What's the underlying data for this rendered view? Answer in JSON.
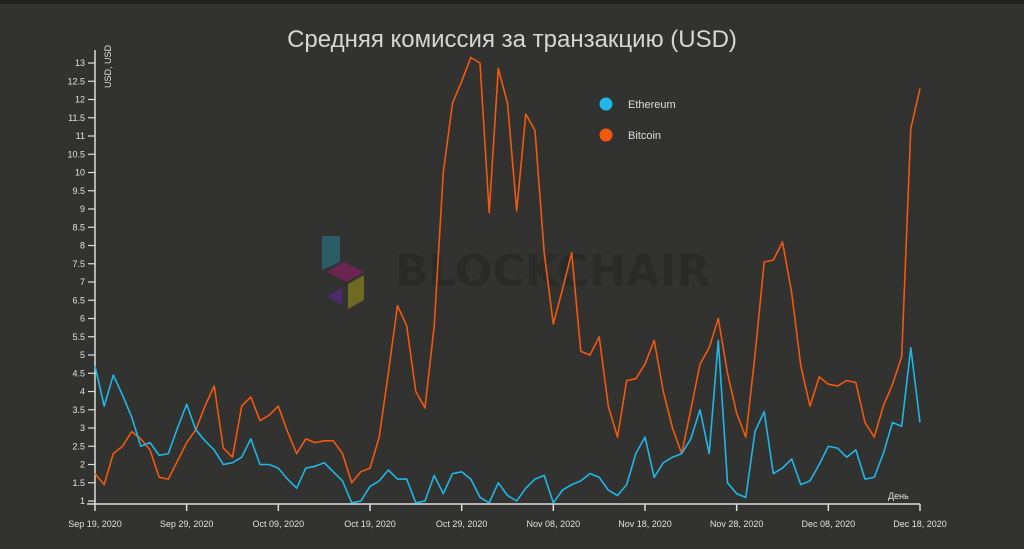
{
  "chart_data": {
    "type": "line",
    "title": "Средняя комиссия за транзакцию (USD)",
    "ylabel": "USD, USD",
    "xlabel": "День",
    "ylim": [
      1,
      13
    ],
    "yticks": [
      "1",
      "1.5",
      "2",
      "2.5",
      "3",
      "3.5",
      "4",
      "4.5",
      "5",
      "5.5",
      "6",
      "6.5",
      "7",
      "7.5",
      "8",
      "8.5",
      "9",
      "9.5",
      "10",
      "10.5",
      "11",
      "11.5",
      "12",
      "12.5",
      "13"
    ],
    "x_start": "2020-09-19",
    "x_end": "2020-12-18",
    "xticks": [
      "Sep 19, 2020",
      "Sep 29, 2020",
      "Oct 09, 2020",
      "Oct 19, 2020",
      "Oct 29, 2020",
      "Nov 08, 2020",
      "Nov 18, 2020",
      "Nov 28, 2020",
      "Dec 08, 2020",
      "Dec 18, 2020"
    ],
    "grid": false,
    "legend_position": "top-right",
    "watermark": "BLOCKCHAIR",
    "series": [
      {
        "name": "Ethereum",
        "color": "#1fb7e8",
        "values": [
          4.7,
          3.6,
          4.45,
          3.9,
          3.3,
          2.5,
          2.6,
          2.25,
          2.3,
          3.0,
          3.65,
          2.95,
          2.65,
          2.4,
          2.0,
          2.05,
          2.2,
          2.7,
          2.0,
          2.0,
          1.9,
          1.6,
          1.35,
          1.9,
          1.95,
          2.05,
          1.8,
          1.55,
          0.95,
          1.0,
          1.4,
          1.55,
          1.85,
          1.6,
          1.6,
          0.95,
          1.0,
          1.7,
          1.2,
          1.75,
          1.8,
          1.6,
          1.1,
          0.95,
          1.5,
          1.15,
          1.0,
          1.35,
          1.6,
          1.7,
          0.95,
          1.3,
          1.45,
          1.55,
          1.75,
          1.65,
          1.3,
          1.15,
          1.45,
          2.3,
          2.75,
          1.65,
          2.05,
          2.2,
          2.3,
          2.7,
          3.5,
          2.3,
          5.4,
          1.5,
          1.2,
          1.1,
          2.9,
          3.45,
          1.75,
          1.9,
          2.15,
          1.45,
          1.55,
          2.0,
          2.5,
          2.45,
          2.2,
          2.4,
          1.6,
          1.65,
          2.3,
          3.15,
          3.05,
          5.2,
          3.15
        ]
      },
      {
        "name": "Bitcoin",
        "color": "#f2590f",
        "values": [
          1.75,
          1.45,
          2.3,
          2.5,
          2.9,
          2.7,
          2.4,
          1.65,
          1.6,
          2.1,
          2.6,
          2.95,
          3.6,
          4.15,
          2.45,
          2.2,
          3.6,
          3.85,
          3.2,
          3.35,
          3.6,
          2.9,
          2.3,
          2.7,
          2.6,
          2.65,
          2.65,
          2.3,
          1.5,
          1.8,
          1.9,
          2.75,
          4.5,
          6.35,
          5.8,
          4.0,
          3.55,
          5.8,
          10.0,
          11.9,
          12.5,
          13.15,
          13.0,
          8.9,
          12.85,
          11.9,
          8.95,
          11.6,
          11.15,
          7.8,
          5.85,
          6.8,
          7.8,
          5.1,
          5.0,
          5.5,
          3.6,
          2.75,
          4.3,
          4.35,
          4.75,
          5.4,
          4.0,
          3.0,
          2.3,
          3.5,
          4.75,
          5.2,
          6.0,
          4.5,
          3.4,
          2.75,
          5.0,
          7.55,
          7.6,
          8.1,
          6.7,
          4.7,
          3.6,
          4.4,
          4.2,
          4.15,
          4.3,
          4.25,
          3.15,
          2.75,
          3.6,
          4.2,
          4.95,
          11.2,
          12.3
        ]
      }
    ]
  }
}
